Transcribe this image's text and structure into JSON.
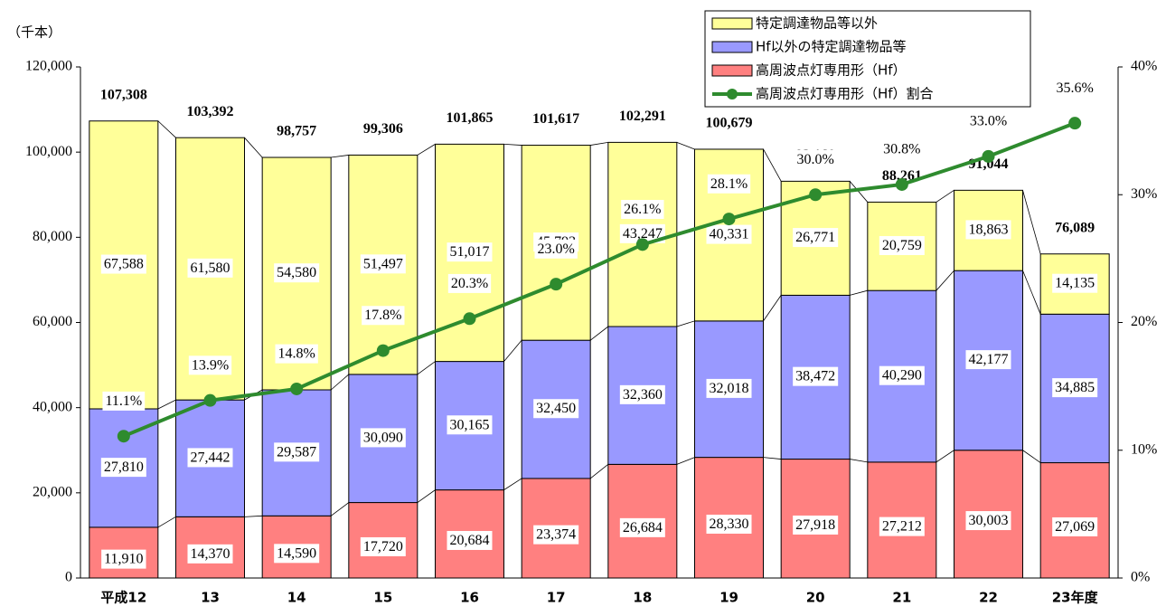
{
  "chart_data": {
    "type": "stacked-bar-line",
    "y_unit_label": "（千本）",
    "categories": [
      "平成12",
      "13",
      "14",
      "15",
      "16",
      "17",
      "18",
      "19",
      "20",
      "21",
      "22",
      "23年度"
    ],
    "series": [
      {
        "name": "高周波点灯専用形（Hf）",
        "color": "#ff8080",
        "values": [
          11910,
          14370,
          14590,
          17720,
          20684,
          23374,
          26684,
          28330,
          27918,
          27212,
          30003,
          27069
        ],
        "value_labels": [
          "11,910",
          "14,370",
          "14,590",
          "17,720",
          "20,684",
          "23,374",
          "26,684",
          "28,330",
          "27,918",
          "27,212",
          "30,003",
          "27,069"
        ]
      },
      {
        "name": "Hf以外の特定調達物品等",
        "color": "#9999ff",
        "values": [
          27810,
          27442,
          29587,
          30090,
          30165,
          32450,
          32360,
          32018,
          38472,
          40290,
          42177,
          34885
        ],
        "value_labels": [
          "27,810",
          "27,442",
          "29,587",
          "30,090",
          "30,165",
          "32,450",
          "32,360",
          "32,018",
          "38,472",
          "40,290",
          "42,177",
          "34,885"
        ]
      },
      {
        "name": "特定調達物品等以外",
        "color": "#ffff99",
        "values": [
          67588,
          61580,
          54580,
          51497,
          51017,
          45793,
          43247,
          40331,
          26771,
          20759,
          18863,
          14135
        ],
        "value_labels": [
          "67,588",
          "61,580",
          "54,580",
          "51,497",
          "51,017",
          "45,793",
          "43,247",
          "40,331",
          "26,771",
          "20,759",
          "18,863",
          "14,135"
        ]
      },
      {
        "name": "高周波点灯専用形（Hf）割合",
        "color": "#2e8b2e",
        "type": "line",
        "axis": "y2",
        "values": [
          11.1,
          13.9,
          14.8,
          17.8,
          20.3,
          23.0,
          26.1,
          28.1,
          30.0,
          30.8,
          33.0,
          35.6
        ],
        "value_labels": [
          "11.1%",
          "13.9%",
          "14.8%",
          "17.8%",
          "20.3%",
          "23.0%",
          "26.1%",
          "28.1%",
          "30.0%",
          "30.8%",
          "33.0%",
          "35.6%"
        ]
      }
    ],
    "totals": [
      107308,
      103392,
      98757,
      99306,
      101865,
      101617,
      102291,
      100679,
      93160,
      88261,
      91044,
      76089
    ],
    "total_labels": [
      "107,308",
      "103,392",
      "98,757",
      "99,306",
      "101,865",
      "101,617",
      "102,291",
      "100,679",
      "93,160",
      "88,261",
      "91,044",
      "76,089"
    ],
    "ylim": [
      0,
      120000
    ],
    "yticks": [
      0,
      {
        "value": 20000,
        "label": "20,000"
      },
      {
        "value": 40000,
        "label": "40,000"
      },
      {
        "value": 60000,
        "label": "60,000"
      },
      {
        "value": 80000,
        "label": "80,000"
      },
      {
        "value": 100000,
        "label": "100,000"
      },
      {
        "value": 120000,
        "label": "120,000"
      }
    ],
    "y2lim": [
      0,
      40
    ],
    "y2ticks": [
      {
        "value": 0,
        "label": "0%"
      },
      {
        "value": 10,
        "label": "10%"
      },
      {
        "value": 20,
        "label": "20%"
      },
      {
        "value": 30,
        "label": "30%"
      },
      {
        "value": 40,
        "label": "40%"
      }
    ],
    "legend": "top-right"
  }
}
